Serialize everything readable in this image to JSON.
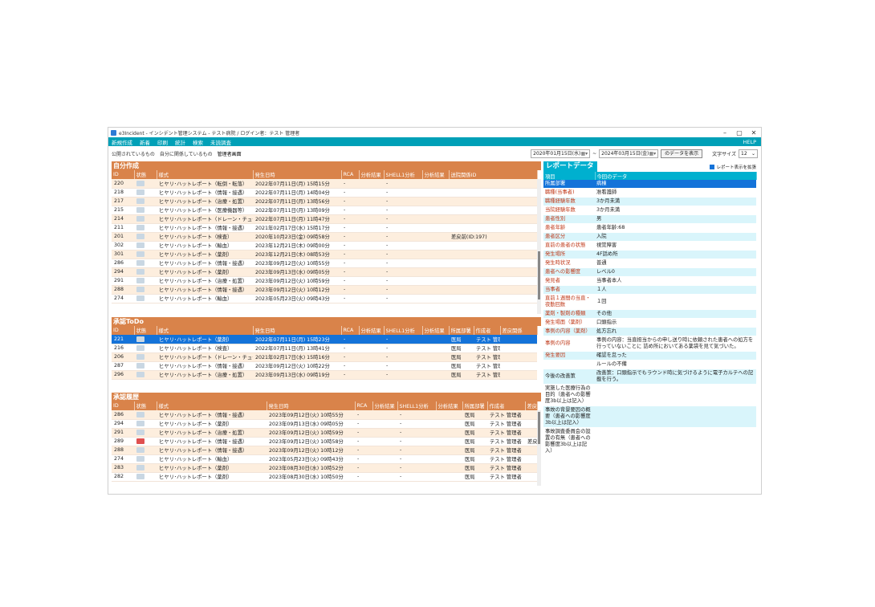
{
  "window": {
    "title": "e3Incident - インシデント管理システム - テスト病院 / ログイン者：テスト 管理者",
    "controls": [
      "–",
      "▢",
      "✕"
    ]
  },
  "menu": {
    "items": [
      "新規作成",
      "新着",
      "印刷",
      "統計",
      "検索",
      "未読調査"
    ],
    "help": "HELP"
  },
  "view_tabs": [
    "公開されているもの",
    "自分に関係しているもの",
    "管理者画面"
  ],
  "filter": {
    "date_from": "2020年01月15日(水)",
    "date_to": "2024年03月15日(金)",
    "show_button": "のデータを表示",
    "font_size_label": "文字サイズ",
    "font_size_value": "12"
  },
  "own": {
    "title": "自分作成",
    "columns": [
      "ID",
      "状態",
      "様式",
      "発生日時",
      "RCA",
      "分析結果",
      "SHELL1分析",
      "分析結果",
      "送院関係ID"
    ],
    "rows": [
      [
        "220",
        "",
        "ヒヤリ･ハットレポート（転倒・転落）",
        "2022年07月11日(月) 15時15分",
        "-",
        "",
        "-",
        "",
        ""
      ],
      [
        "218",
        "",
        "ヒヤリ･ハットレポート（情報・接遇）",
        "2022年07月11日(月) 14時04分",
        "-",
        "",
        "-",
        "",
        ""
      ],
      [
        "217",
        "",
        "ヒヤリ･ハットレポート（治療・処置）",
        "2022年07月11日(月) 13時56分",
        "-",
        "",
        "-",
        "",
        ""
      ],
      [
        "215",
        "",
        "ヒヤリ･ハットレポート（医療機器等）",
        "2022年07月11日(月) 13時09分",
        "-",
        "",
        "-",
        "",
        ""
      ],
      [
        "214",
        "",
        "ヒヤリ･ハットレポート（ドレーン・チューブ）",
        "2022年07月11日(月) 11時47分",
        "-",
        "",
        "-",
        "",
        ""
      ],
      [
        "211",
        "",
        "ヒヤリ･ハットレポート（情報・接遇）",
        "2021年02月17日(水) 15時17分",
        "-",
        "",
        "-",
        "",
        ""
      ],
      [
        "201",
        "",
        "ヒヤリ･ハットレポート（検査）",
        "2020年10月23日(金) 09時58分",
        "-",
        "",
        "-",
        "",
        "差戻前(ID:197)"
      ],
      [
        "302",
        "",
        "ヒヤリ･ハットレポート（輸血）",
        "2023年12月21日(木) 09時00分",
        "-",
        "",
        "-",
        "",
        ""
      ],
      [
        "301",
        "",
        "ヒヤリ･ハットレポート（薬剤）",
        "2023年12月21日(木) 08時53分",
        "-",
        "",
        "-",
        "",
        ""
      ],
      [
        "286",
        "",
        "ヒヤリ･ハットレポート（情報・接遇）",
        "2023年09月12日(火) 10時55分",
        "-",
        "",
        "-",
        "",
        ""
      ],
      [
        "294",
        "",
        "ヒヤリ･ハットレポート（薬剤）",
        "2023年09月13日(水) 09時05分",
        "-",
        "",
        "-",
        "",
        ""
      ],
      [
        "291",
        "",
        "ヒヤリ･ハットレポート（治療・処置）",
        "2023年09月12日(火) 10時59分",
        "-",
        "",
        "-",
        "",
        ""
      ],
      [
        "288",
        "",
        "ヒヤリ･ハットレポート（情報・接遇）",
        "2023年09月12日(火) 10時12分",
        "-",
        "",
        "-",
        "",
        ""
      ],
      [
        "274",
        "",
        "ヒヤリ･ハットレポート（輸血）",
        "2023年05月23日(火) 09時43分",
        "-",
        "",
        "-",
        "",
        ""
      ]
    ]
  },
  "todo": {
    "title": "承認ToDo",
    "columns": [
      "ID",
      "状態",
      "様式",
      "発生日時",
      "RCA",
      "分析結果",
      "SHELL1分析",
      "分析結果",
      "所属部署",
      "作成者",
      "差戻関係"
    ],
    "rows": [
      [
        "221",
        "",
        "ヒヤリ･ハットレポート（薬剤）",
        "2022年07月11日(月) 15時23分",
        "-",
        "",
        "-",
        "",
        "医局",
        "テスト 管理者",
        ""
      ],
      [
        "216",
        "",
        "ヒヤリ･ハットレポート（検査）",
        "2022年07月11日(月) 13時41分",
        "-",
        "",
        "-",
        "",
        "医局",
        "テスト 管理者",
        ""
      ],
      [
        "206",
        "",
        "ヒヤリ･ハットレポート（ドレーン・チューブ）",
        "2021年02月17日(水) 15時16分",
        "-",
        "",
        "-",
        "",
        "医局",
        "テスト 管理者",
        ""
      ],
      [
        "287",
        "",
        "ヒヤリ･ハットレポート（情報・接遇）",
        "2023年09月12日(火) 10時22分",
        "-",
        "",
        "-",
        "",
        "医局",
        "テスト 管理者",
        ""
      ],
      [
        "296",
        "",
        "ヒヤリ･ハットレポート（治療・処置）",
        "2023年09月13日(水) 09時19分",
        "-",
        "",
        "-",
        "",
        "医局",
        "テスト 管理者",
        ""
      ]
    ]
  },
  "history": {
    "title": "承認履歴",
    "columns": [
      "ID",
      "状態",
      "様式",
      "発生日時",
      "RCA",
      "分析結果",
      "SHELL1分析",
      "分析結果",
      "所属部署",
      "作成者",
      "差戻"
    ],
    "rows": [
      [
        "286",
        "",
        "ヒヤリ･ハットレポート（情報・接遇）",
        "2023年09月12日(火) 10時55分",
        "-",
        "",
        "-",
        "",
        "医局",
        "テスト 管理者",
        ""
      ],
      [
        "294",
        "",
        "ヒヤリ･ハットレポート（薬剤）",
        "2023年09月13日(水) 09時05分",
        "-",
        "",
        "-",
        "",
        "医局",
        "テスト 管理者",
        ""
      ],
      [
        "291",
        "",
        "ヒヤリ･ハットレポート（治療・処置）",
        "2023年09月12日(火) 10時59分",
        "-",
        "",
        "-",
        "",
        "医局",
        "テスト 管理者",
        ""
      ],
      [
        "289",
        "",
        "ヒヤリ･ハットレポート（情報・接遇）",
        "2023年09月12日(火) 10時58分",
        "-",
        "",
        "-",
        "",
        "医局",
        "テスト 管理者",
        "差戻"
      ],
      [
        "288",
        "",
        "ヒヤリ･ハットレポート（情報・接遇）",
        "2023年09月12日(火) 10時12分",
        "-",
        "",
        "-",
        "",
        "医局",
        "テスト 管理者",
        ""
      ],
      [
        "274",
        "",
        "ヒヤリ･ハットレポート（輸血）",
        "2023年05月23日(火) 09時43分",
        "-",
        "",
        "-",
        "",
        "医局",
        "テスト 管理者",
        ""
      ],
      [
        "283",
        "",
        "ヒヤリ･ハットレポート（薬剤）",
        "2023年08月30日(水) 10時52分",
        "-",
        "",
        "-",
        "",
        "医局",
        "テスト 管理者",
        ""
      ],
      [
        "282",
        "",
        "ヒヤリ･ハットレポート（薬剤）",
        "2023年08月30日(水) 10時50分",
        "-",
        "",
        "-",
        "",
        "医局",
        "テスト 管理者",
        ""
      ]
    ]
  },
  "report": {
    "title": "レポートデータ",
    "expand_label": "レポート表示を拡張",
    "columns": [
      "項目",
      "今回のデータ"
    ],
    "rows": [
      [
        "所属部署",
        "病棟"
      ],
      [
        "職種(当事者)",
        "准看護師"
      ],
      [
        "職種経験年数",
        "3か月未満"
      ],
      [
        "当院経験年数",
        "3か月未満"
      ],
      [
        "患者性別",
        "男"
      ],
      [
        "患者年齢",
        "患者年齢:68"
      ],
      [
        "患者区分",
        "入院"
      ],
      [
        "直前の患者の状態",
        "視覚障害"
      ],
      [
        "発生場所",
        "4F話め所"
      ],
      [
        "発生時状況",
        "普通"
      ],
      [
        "患者への影響度",
        "レベル0"
      ],
      [
        "発見者",
        "当事者本人"
      ],
      [
        "当事者",
        "１人"
      ],
      [
        "直前１週間の当直・夜勤回数",
        "１回"
      ],
      [
        "薬剤・製剤の種類",
        "その他"
      ],
      [
        "発生場面（薬剤）",
        "口頭指示"
      ],
      [
        "事例の内容（薬剤）",
        "処方忘れ"
      ],
      [
        "事例の内容",
        "事例の内容：当直担当からの申し送り時に依頼された患者への処方を行っていないことに 詰め所においてある薬袋を見て気づいた。"
      ],
      [
        "発生要因",
        "確認を怠った"
      ],
      [
        "",
        "ルールの不備"
      ],
      [
        "今後の改善策",
        "改善策：口頭指示でもラウンド時に気づけるように電子カルテへの記載を行う。"
      ],
      [
        "実施した医療行為の目的（患者への影響度3b以上は記入）",
        ""
      ],
      [
        "事故の背景要因の概要（患者への影響度3b以上は記入）",
        ""
      ],
      [
        "事故調査委員会の設置の有無（患者への影響度3b以上は記入）",
        ""
      ]
    ]
  }
}
